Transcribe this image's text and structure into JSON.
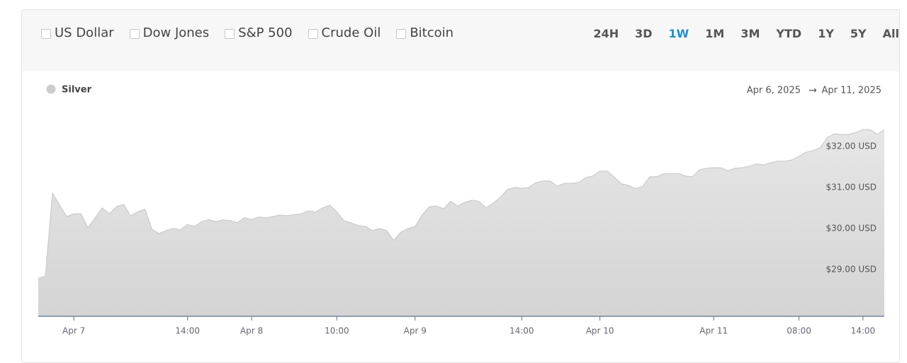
{
  "toolbar": {
    "filters": [
      "US Dollar",
      "Dow Jones",
      "S&P 500",
      "Crude Oil",
      "Bitcoin"
    ],
    "ranges": [
      "24H",
      "3D",
      "1W",
      "1M",
      "3M",
      "YTD",
      "1Y",
      "5Y",
      "All"
    ],
    "selected": "1W"
  },
  "chart_data": {
    "type": "area",
    "date_from": "Apr 6, 2025",
    "arrow": "→",
    "date_to": "Apr 11, 2025",
    "categories": [
      null,
      null,
      null,
      null,
      null,
      "Apr 7",
      null,
      null,
      null,
      null,
      null,
      null,
      null,
      null,
      null,
      null,
      null,
      null,
      null,
      null,
      null,
      "14:00",
      null,
      null,
      null,
      null,
      null,
      null,
      null,
      null,
      "Apr 8",
      null,
      null,
      null,
      null,
      null,
      null,
      null,
      null,
      null,
      null,
      null,
      "10:00",
      null,
      null,
      null,
      null,
      null,
      null,
      null,
      null,
      null,
      null,
      "Apr 9",
      null,
      null,
      null,
      null,
      null,
      null,
      null,
      null,
      null,
      null,
      null,
      null,
      null,
      null,
      "14:00",
      null,
      null,
      null,
      null,
      null,
      null,
      null,
      null,
      null,
      null,
      "Apr 10",
      null,
      null,
      null,
      null,
      null,
      null,
      null,
      null,
      null,
      null,
      null,
      null,
      null,
      null,
      null,
      "Apr 11",
      null,
      null,
      null,
      null,
      null,
      null,
      null,
      null,
      null,
      null,
      null,
      "08:00",
      null,
      null,
      null,
      null,
      null,
      null,
      null,
      null,
      "14:00",
      null,
      null,
      null
    ],
    "series": [
      {
        "name": "Silver",
        "color": "#cccccc",
        "values": [
          28.79,
          28.84,
          30.86,
          30.57,
          30.29,
          30.36,
          30.36,
          30.02,
          30.26,
          30.5,
          30.36,
          30.53,
          30.59,
          30.31,
          30.41,
          30.47,
          29.98,
          29.88,
          29.95,
          30.0,
          29.97,
          30.1,
          30.05,
          30.17,
          30.22,
          30.17,
          30.21,
          30.19,
          30.14,
          30.26,
          30.22,
          30.28,
          30.26,
          30.29,
          30.33,
          30.31,
          30.34,
          30.36,
          30.43,
          30.4,
          30.5,
          30.57,
          30.4,
          30.19,
          30.14,
          30.07,
          30.05,
          29.95,
          30.0,
          29.95,
          29.71,
          29.91,
          30.0,
          30.05,
          30.33,
          30.53,
          30.55,
          30.48,
          30.66,
          30.55,
          30.64,
          30.69,
          30.66,
          30.5,
          30.62,
          30.76,
          30.95,
          31.0,
          30.98,
          31.0,
          31.12,
          31.16,
          31.16,
          31.03,
          31.1,
          31.1,
          31.12,
          31.24,
          31.28,
          31.4,
          31.4,
          31.26,
          31.09,
          31.05,
          30.97,
          31.03,
          31.26,
          31.26,
          31.34,
          31.33,
          31.34,
          31.28,
          31.26,
          31.43,
          31.47,
          31.48,
          31.48,
          31.41,
          31.47,
          31.48,
          31.52,
          31.57,
          31.55,
          31.6,
          31.64,
          31.64,
          31.67,
          31.76,
          31.86,
          31.9,
          31.97,
          32.22,
          32.31,
          32.29,
          32.29,
          32.34,
          32.41,
          32.41,
          32.29,
          32.41
        ]
      }
    ],
    "ylim": [
      27.86,
      32.81
    ],
    "yticks": [
      {
        "value": 29,
        "label": "$29.00 USD"
      },
      {
        "value": 30,
        "label": "$30.00 USD"
      },
      {
        "value": 31,
        "label": "$31.00 USD"
      },
      {
        "value": 32,
        "label": "$32.00 USD"
      }
    ],
    "grid": false
  }
}
